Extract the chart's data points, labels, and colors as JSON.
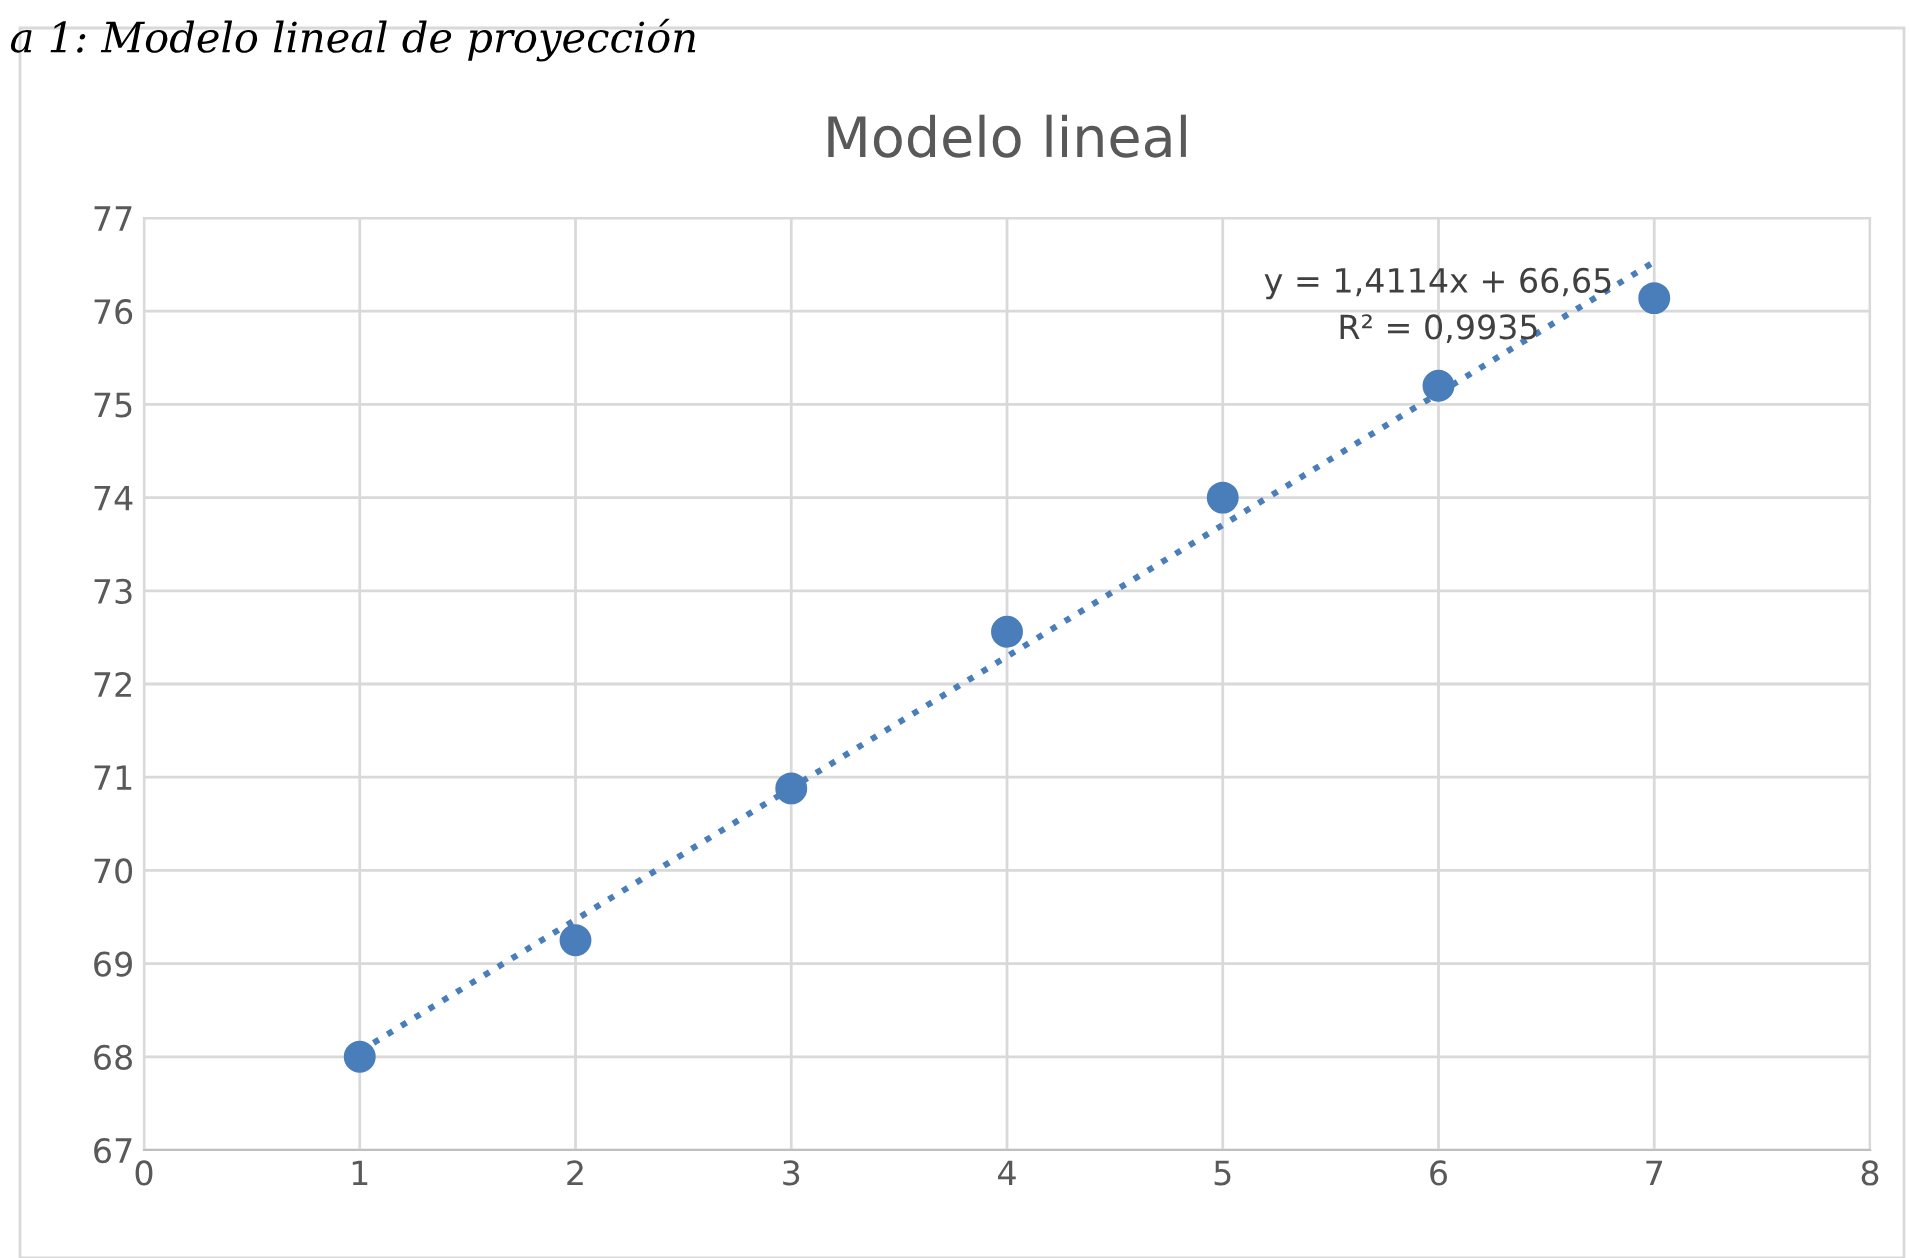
{
  "chart_data": {
    "type": "scatter",
    "title": "Modelo lineal",
    "x": [
      1,
      2,
      3,
      4,
      5,
      6,
      7
    ],
    "series": [
      {
        "color": "#4a7ebb",
        "values": [
          68.0,
          69.25,
          70.88,
          72.56,
          74.0,
          75.2,
          76.14
        ],
        "marker": "circle"
      },
      {
        "type": "line",
        "color": "#4a7ebb",
        "x": [
          1,
          7
        ],
        "values": [
          68.06,
          76.53
        ],
        "line_style": "dotted",
        "marker": "none"
      }
    ],
    "xlim": [
      0,
      8
    ],
    "xticks": [
      0,
      1,
      2,
      3,
      4,
      5,
      6,
      7,
      8
    ],
    "ylim": [
      67,
      77
    ],
    "yticks": [
      67,
      68,
      69,
      70,
      71,
      72,
      73,
      74,
      75,
      76,
      77
    ],
    "grid": true,
    "legend": false,
    "annotations": [
      "a 1: Modelo lineal de proyección",
      "y = 1,4114x + 66,65",
      "R² = 0,9935"
    ]
  }
}
